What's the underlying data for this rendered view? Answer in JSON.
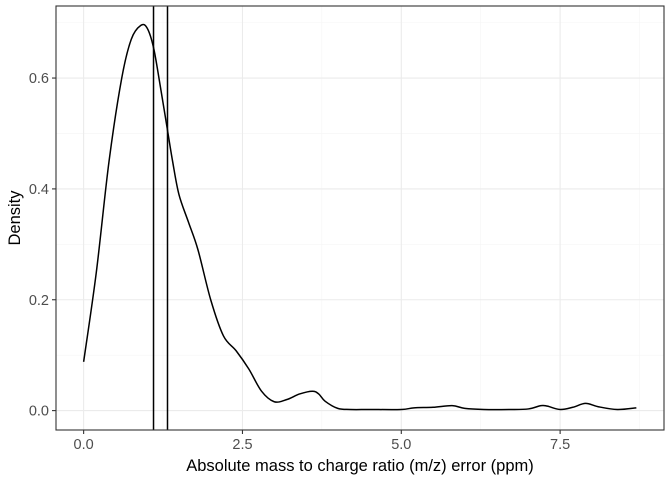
{
  "chart_data": {
    "type": "line",
    "title": "",
    "xlabel": "Absolute mass to charge ratio (m/z) error (ppm)",
    "ylabel": "Density",
    "xlim": [
      -0.435,
      9.135
    ],
    "ylim": [
      -0.035,
      0.73
    ],
    "x_ticks": [
      {
        "value": 0.0,
        "label": "0.0"
      },
      {
        "value": 2.5,
        "label": "2.5"
      },
      {
        "value": 5.0,
        "label": "5.0"
      },
      {
        "value": 7.5,
        "label": "7.5"
      }
    ],
    "y_ticks": [
      {
        "value": 0.0,
        "label": "0.0"
      },
      {
        "value": 0.2,
        "label": "0.2"
      },
      {
        "value": 0.4,
        "label": "0.4"
      },
      {
        "value": 0.6,
        "label": "0.6"
      }
    ],
    "grid": true,
    "line_color": "#000000",
    "series": [
      {
        "x": [
          0.0,
          0.2,
          0.4,
          0.6,
          0.75,
          0.9,
          1.0,
          1.1,
          1.2,
          1.3,
          1.4,
          1.5,
          1.65,
          1.8,
          2.0,
          2.2,
          2.4,
          2.6,
          2.8,
          3.0,
          3.2,
          3.4,
          3.6,
          3.7,
          3.8,
          4.0,
          4.2,
          4.5,
          5.0,
          5.2,
          5.5,
          5.8,
          6.0,
          6.3,
          6.7,
          7.0,
          7.2,
          7.3,
          7.5,
          7.7,
          7.9,
          8.1,
          8.4,
          8.7
        ],
        "y": [
          0.088,
          0.25,
          0.45,
          0.6,
          0.67,
          0.695,
          0.69,
          0.655,
          0.59,
          0.52,
          0.45,
          0.39,
          0.34,
          0.29,
          0.2,
          0.135,
          0.108,
          0.075,
          0.035,
          0.016,
          0.02,
          0.03,
          0.035,
          0.03,
          0.017,
          0.004,
          0.002,
          0.002,
          0.002,
          0.005,
          0.006,
          0.009,
          0.004,
          0.002,
          0.002,
          0.003,
          0.009,
          0.008,
          0.002,
          0.006,
          0.013,
          0.007,
          0.002,
          0.005
        ]
      }
    ],
    "vlines": [
      1.1,
      1.32
    ]
  }
}
